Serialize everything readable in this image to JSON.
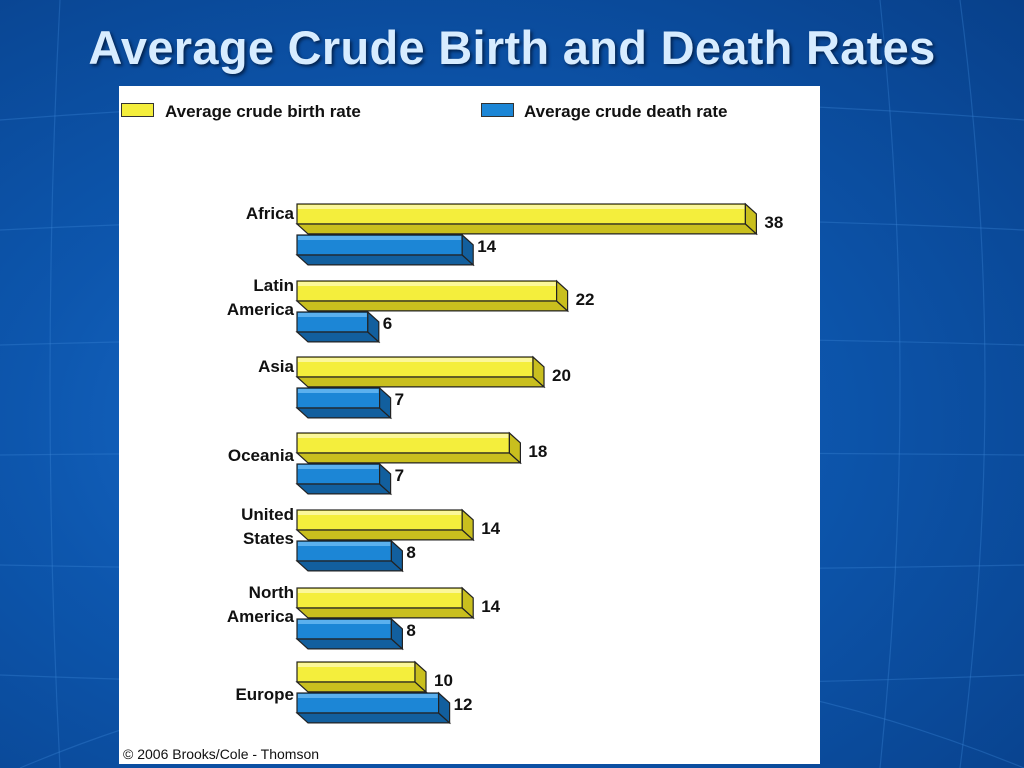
{
  "slide": {
    "title": "Average Crude Birth and Death Rates",
    "copyright": "© 2006 Brooks/Cole - Thomson"
  },
  "colors": {
    "birth_front": "#f4ee3c",
    "birth_top": "#fbf79a",
    "birth_side": "#c9bf1e",
    "death_front": "#1c86d6",
    "death_top": "#5bb0ee",
    "death_side": "#125f9e",
    "background": "#0d56ad"
  },
  "chart_data": {
    "type": "bar",
    "orientation": "horizontal",
    "categories": [
      [
        "Africa"
      ],
      [
        "Latin",
        "America"
      ],
      [
        "Asia"
      ],
      [
        "Oceania"
      ],
      [
        "United",
        "States"
      ],
      [
        "North",
        "America"
      ],
      [
        "Europe"
      ]
    ],
    "series": [
      {
        "name": "Average crude birth rate",
        "values": [
          38,
          22,
          20,
          18,
          14,
          14,
          10
        ]
      },
      {
        "name": "Average crude death rate",
        "values": [
          14,
          6,
          7,
          7,
          8,
          8,
          12
        ]
      }
    ],
    "xlim": [
      0,
      40
    ],
    "grid": false,
    "legend": "top"
  }
}
